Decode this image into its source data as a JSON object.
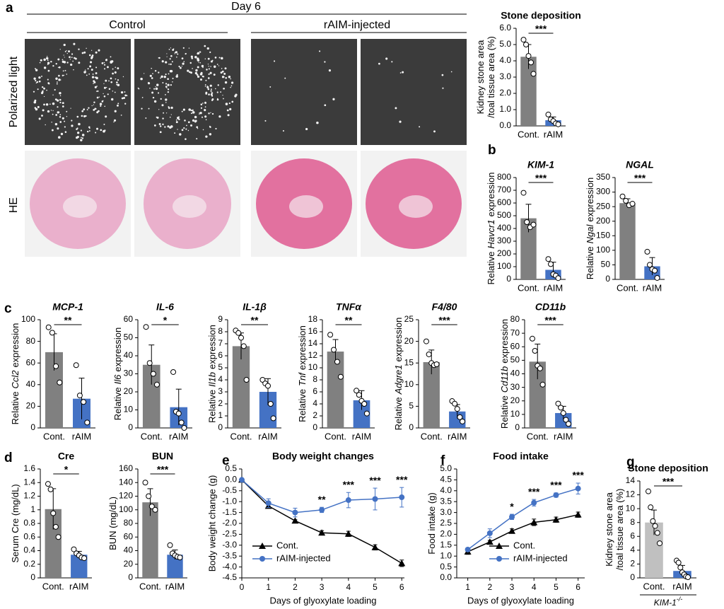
{
  "figure": {
    "panel_labels": [
      "a",
      "b",
      "c",
      "d",
      "e",
      "f",
      "g"
    ],
    "day": "Day 6",
    "groups": [
      "Control",
      "rAIM-injected"
    ],
    "rows": [
      "Polarized light",
      "HE"
    ]
  },
  "chart_data": [
    {
      "type": "bar",
      "title": "Stone deposition",
      "ylabel": [
        [
          {
            "text": "Kidney stone area"
          }
        ],
        [
          {
            "text": "/toal tissue area (%)"
          }
        ]
      ],
      "categories": [
        "Cont.",
        "rAIM"
      ],
      "values": [
        4.25,
        0.35
      ],
      "errors": [
        0.75,
        0.2
      ],
      "colors": [
        "#808080",
        "#4472c4"
      ],
      "points": [
        [
          5.3,
          5.0,
          4.3,
          3.9,
          3.2
        ],
        [
          0.7,
          0.4,
          0.3,
          0.15,
          0.1
        ]
      ],
      "significance": "***",
      "ylim": [
        0,
        6
      ],
      "yticks": [
        {
          "value": 0,
          "label": "0.0"
        },
        {
          "value": 1,
          "label": "1.0"
        },
        {
          "value": 2,
          "label": "2.0"
        },
        {
          "value": 3,
          "label": "3.0"
        },
        {
          "value": 4,
          "label": "4.0"
        },
        {
          "value": 5,
          "label": "5.0"
        },
        {
          "value": 6,
          "label": "6.0"
        }
      ]
    },
    {
      "type": "bar",
      "title": "KIM-1",
      "title_italic": true,
      "ylabel": [
        [
          {
            "text": "Relative"
          },
          {
            "text": "Havcr1",
            "italic": true
          },
          {
            "text": "expression"
          }
        ]
      ],
      "categories": [
        "Cont.",
        "rAIM"
      ],
      "values": [
        480,
        75
      ],
      "errors": [
        110,
        60
      ],
      "colors": [
        "#808080",
        "#4472c4"
      ],
      "points": [
        [
          680,
          450,
          410,
          430
        ],
        [
          160,
          120,
          40,
          30,
          10
        ]
      ],
      "significance": "***",
      "ylim": [
        0,
        800
      ],
      "yticks": [
        0,
        100,
        200,
        300,
        400,
        500,
        600,
        700,
        800
      ]
    },
    {
      "type": "bar",
      "title": "NGAL",
      "title_italic": true,
      "ylabel": [
        [
          {
            "text": "Relative"
          },
          {
            "text": "Ngal",
            "italic": true
          },
          {
            "text": "expression"
          }
        ]
      ],
      "categories": [
        "Cont.",
        "rAIM"
      ],
      "values": [
        262,
        45
      ],
      "errors": [
        15,
        30
      ],
      "colors": [
        "#808080",
        "#4472c4"
      ],
      "points": [
        [
          285,
          270,
          255,
          260
        ],
        [
          95,
          50,
          35,
          30,
          5
        ]
      ],
      "significance": "***",
      "ylim": [
        0,
        350
      ],
      "yticks": [
        0,
        50,
        100,
        150,
        200,
        250,
        300,
        350
      ]
    },
    {
      "type": "bar",
      "title": "MCP-1",
      "title_italic": true,
      "ylabel": [
        [
          {
            "text": "Relative"
          },
          {
            "text": "Ccl2",
            "italic": true
          },
          {
            "text": "expression"
          }
        ]
      ],
      "categories": [
        "Cont.",
        "rAIM"
      ],
      "values": [
        70,
        27
      ],
      "errors": [
        17,
        19
      ],
      "colors": [
        "#808080",
        "#4472c4"
      ],
      "points": [
        [
          93,
          88,
          57,
          42
        ],
        [
          58,
          30,
          24,
          5
        ]
      ],
      "significance": "**",
      "ylim": [
        0,
        100
      ],
      "yticks": [
        0,
        20,
        40,
        60,
        80,
        100
      ]
    },
    {
      "type": "bar",
      "title": "IL-6",
      "title_italic": true,
      "ylabel": [
        [
          {
            "text": "Relative"
          },
          {
            "text": "Il6",
            "italic": true
          },
          {
            "text": "expression"
          }
        ]
      ],
      "categories": [
        "Cont.",
        "rAIM"
      ],
      "values": [
        35,
        11.5
      ],
      "errors": [
        11,
        10
      ],
      "colors": [
        "#808080",
        "#4472c4"
      ],
      "points": [
        [
          56,
          36,
          30,
          24
        ],
        [
          31,
          9,
          8,
          3,
          0
        ]
      ],
      "significance": "*",
      "ylim": [
        0,
        60
      ],
      "yticks": [
        0,
        10,
        20,
        30,
        40,
        50,
        60
      ]
    },
    {
      "type": "bar",
      "title": "IL-1β",
      "title_italic": true,
      "ylabel": [
        [
          {
            "text": "Relative"
          },
          {
            "text": "Il1b",
            "italic": true
          },
          {
            "text": "expression"
          }
        ]
      ],
      "categories": [
        "Cont.",
        "rAIM"
      ],
      "values": [
        6.8,
        3.0
      ],
      "errors": [
        1.1,
        1.1
      ],
      "colors": [
        "#808080",
        "#4472c4"
      ],
      "points": [
        [
          8.1,
          7.9,
          7.5,
          6.8,
          4.0
        ],
        [
          4.0,
          3.7,
          3.5,
          2.0,
          0.8
        ]
      ],
      "significance": "**",
      "ylim": [
        0,
        9
      ],
      "yticks": [
        0,
        1,
        2,
        3,
        4,
        5,
        6,
        7,
        8,
        9
      ]
    },
    {
      "type": "bar",
      "title": "TNFα",
      "title_italic": true,
      "ylabel": [
        [
          {
            "text": "Relative"
          },
          {
            "text": "Tnf",
            "italic": true
          },
          {
            "text": "expression"
          }
        ]
      ],
      "categories": [
        "Cont.",
        "rAIM"
      ],
      "values": [
        12.7,
        4.6
      ],
      "errors": [
        2,
        1.6
      ],
      "colors": [
        "#808080",
        "#4472c4"
      ],
      "points": [
        [
          15.5,
          13,
          11,
          8.5
        ],
        [
          6.2,
          5.5,
          4.5,
          4,
          2.4
        ]
      ],
      "significance": "**",
      "ylim": [
        0,
        18
      ],
      "yticks": [
        0,
        2,
        4,
        6,
        8,
        10,
        12,
        14,
        16,
        18
      ]
    },
    {
      "type": "bar",
      "title": "F4/80",
      "title_italic": true,
      "ylabel": [
        [
          {
            "text": "Relative"
          },
          {
            "text": "Adgre1",
            "italic": true
          },
          {
            "text": "expression"
          }
        ]
      ],
      "categories": [
        "Cont.",
        "rAIM"
      ],
      "values": [
        15.2,
        3.8
      ],
      "errors": [
        2.8,
        1.6
      ],
      "colors": [
        "#808080",
        "#4472c4"
      ],
      "points": [
        [
          20,
          17,
          15,
          14.5,
          14.7
        ],
        [
          6.2,
          5.6,
          4.4,
          2.5,
          1.5
        ]
      ],
      "significance": "***",
      "ylim": [
        0,
        25
      ],
      "yticks": [
        0,
        5,
        10,
        15,
        20,
        25
      ]
    },
    {
      "type": "bar",
      "title": "CD11b",
      "title_italic": true,
      "ylabel": [
        [
          {
            "text": "Relative"
          },
          {
            "text": "Cd11b",
            "italic": true
          },
          {
            "text": "expression"
          }
        ]
      ],
      "categories": [
        "Cont.",
        "rAIM"
      ],
      "values": [
        49,
        11
      ],
      "errors": [
        13,
        5
      ],
      "colors": [
        "#808080",
        "#4472c4"
      ],
      "points": [
        [
          66,
          57,
          46,
          44,
          32
        ],
        [
          18,
          15,
          11,
          6,
          3
        ]
      ],
      "significance": "***",
      "ylim": [
        0,
        80
      ],
      "yticks": [
        0,
        10,
        20,
        30,
        40,
        50,
        60,
        70,
        80
      ]
    },
    {
      "type": "bar",
      "title": "Cre",
      "ylabel": [
        [
          {
            "text": "Serum Cre (mg/dL)"
          }
        ]
      ],
      "categories": [
        "Cont.",
        "rAIM"
      ],
      "values": [
        1.01,
        0.34
      ],
      "errors": [
        0.3,
        0.05
      ],
      "colors": [
        "#808080",
        "#4472c4"
      ],
      "points": [
        [
          1.38,
          1.3,
          0.95,
          0.75,
          0.6
        ],
        [
          0.42,
          0.36,
          0.33,
          0.3,
          0.29
        ]
      ],
      "significance": "*",
      "ylim": [
        0,
        1.6
      ],
      "yticks": [
        0,
        0.2,
        0.4,
        0.6,
        0.8,
        1,
        1.2,
        1.4,
        1.6
      ]
    },
    {
      "type": "bar",
      "title": "BUN",
      "ylabel": [
        [
          {
            "text": "BUN (mg/dL)"
          }
        ]
      ],
      "categories": [
        "Cont.",
        "rAIM"
      ],
      "values": [
        111,
        34
      ],
      "errors": [
        20,
        7
      ],
      "colors": [
        "#808080",
        "#4472c4"
      ],
      "points": [
        [
          140,
          120,
          105,
          100
        ],
        [
          48,
          36,
          33,
          31,
          30
        ]
      ],
      "significance": "***",
      "ylim": [
        0,
        160
      ],
      "yticks": [
        0,
        20,
        40,
        60,
        80,
        100,
        120,
        140,
        160
      ]
    },
    {
      "type": "line",
      "title": "Body weight changes",
      "xlabel": "Days of glyoxylate loading",
      "ylabel": [
        [
          {
            "text": "Body weight change (g)"
          }
        ]
      ],
      "x": [
        0,
        1,
        2,
        3,
        4,
        5,
        6
      ],
      "series": [
        {
          "name": "Cont.",
          "color": "#000000",
          "marker": "triangle",
          "values": [
            0,
            -1.2,
            -1.88,
            -2.43,
            -2.48,
            -3.1,
            -3.83
          ],
          "errors": [
            0,
            0.08,
            0.05,
            0.1,
            0.12,
            0.12,
            0.15
          ]
        },
        {
          "name": "rAIM-injected",
          "color": "#4472c4",
          "marker": "circle",
          "values": [
            0,
            -1.07,
            -1.5,
            -1.38,
            -0.93,
            -0.88,
            -0.8
          ],
          "errors": [
            0,
            0.2,
            0.2,
            0.12,
            0.35,
            0.5,
            0.45
          ]
        }
      ],
      "significance": [
        null,
        null,
        null,
        "**",
        "***",
        "***",
        "***"
      ],
      "legend": "lower left",
      "xlim": [
        0,
        6.1
      ],
      "xticks": [
        0,
        1,
        2,
        3,
        4,
        5,
        6
      ],
      "ylim": [
        -4.5,
        0.5
      ],
      "yticks": [
        0.5,
        {
          "value": 0,
          "label": "0.0"
        },
        -0.5,
        {
          "value": -1,
          "label": "-1.0"
        },
        -1.5,
        {
          "value": -2,
          "label": "-2.0"
        },
        -2.5,
        {
          "value": -3,
          "label": "-3.0"
        },
        -3.5,
        {
          "value": -4,
          "label": "-4.0"
        },
        -4.5
      ]
    },
    {
      "type": "line",
      "title": "Food intake",
      "xlabel": "Days of glyoxylate loading",
      "ylabel": [
        [
          {
            "text": "Food intake (g)"
          }
        ]
      ],
      "x": [
        1,
        2,
        3,
        4,
        5,
        6
      ],
      "series": [
        {
          "name": "Cont.",
          "color": "#000000",
          "marker": "triangle",
          "values": [
            1.2,
            1.65,
            2.15,
            2.55,
            2.67,
            2.9
          ],
          "errors": [
            0.12,
            0.07,
            0.1,
            0.15,
            0.12,
            0.12
          ]
        },
        {
          "name": "rAIM-injected",
          "color": "#4472c4",
          "marker": "circle",
          "values": [
            1.3,
            2.05,
            2.8,
            3.45,
            3.8,
            4.1
          ],
          "errors": [
            0.08,
            0.2,
            0.12,
            0.15,
            0.1,
            0.25
          ]
        }
      ],
      "significance": [
        null,
        null,
        "*",
        "***",
        "***",
        "***"
      ],
      "legend": "lower right",
      "xlim": [
        0.5,
        6.3
      ],
      "xticks": [
        1,
        2,
        3,
        4,
        5,
        6
      ],
      "ylim": [
        0,
        5
      ],
      "yticks": [
        {
          "value": 0,
          "label": "0.0"
        },
        0.5,
        {
          "value": 1,
          "label": "1.0"
        },
        1.5,
        {
          "value": 2,
          "label": "2.0"
        },
        2.5,
        {
          "value": 3,
          "label": "3.0"
        },
        3.5,
        {
          "value": 4,
          "label": "4.0"
        },
        4.5,
        {
          "value": 5,
          "label": "5.0"
        }
      ]
    },
    {
      "type": "bar",
      "title": "Stone deposition",
      "ylabel": [
        [
          {
            "text": "Kidney stone area"
          }
        ],
        [
          {
            "text": "/toal tissue area (%)"
          }
        ]
      ],
      "categories": [
        "Cont.",
        "rAIM"
      ],
      "values": [
        8.0,
        1.0
      ],
      "errors": [
        1.8,
        0.8
      ],
      "colors": [
        "#c0c0c0",
        "#4472c4"
      ],
      "points": [
        [
          12.5,
          10.2,
          8.2,
          7.5,
          6.5,
          5.0
        ],
        [
          2.5,
          2.2,
          1.5,
          0.8,
          0.5,
          0.2,
          0.1
        ]
      ],
      "significance": "***",
      "group_label": "KIM-1",
      "group_label_sup": "-/-",
      "ylim": [
        0,
        14
      ],
      "yticks": [
        0,
        2,
        4,
        6,
        8,
        10,
        12,
        14
      ]
    }
  ]
}
